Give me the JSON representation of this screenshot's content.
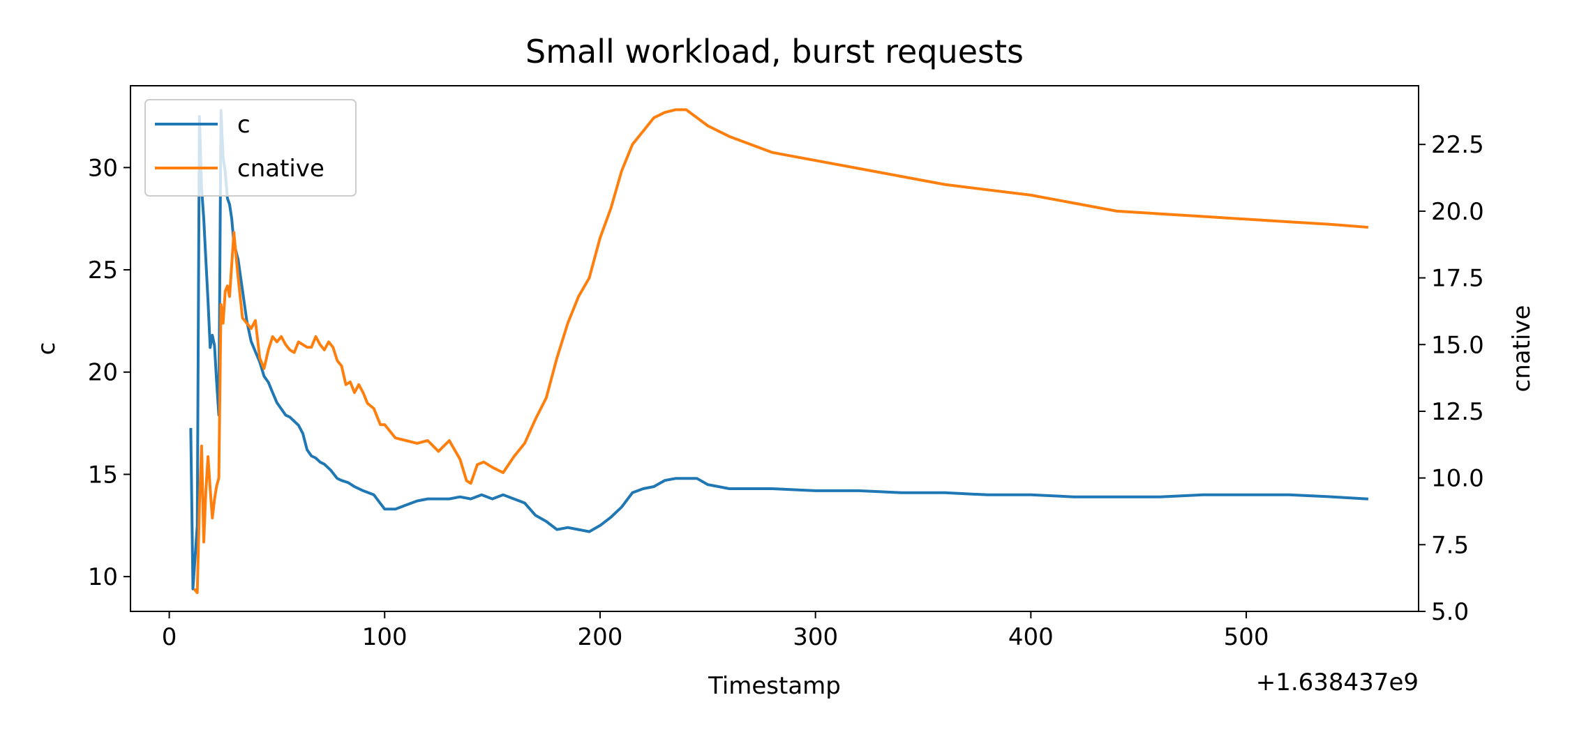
{
  "chart_data": {
    "type": "line",
    "title": "Small workload, burst requests",
    "xlabel": "Timestamp",
    "x_offset_label": "+1.638437e9",
    "ylabel_left": "c",
    "ylabel_right": "cnative",
    "xlim": [
      -18,
      580
    ],
    "ylim_left": [
      8.3,
      34.0
    ],
    "ylim_right": [
      5.0,
      24.7
    ],
    "xticks": [
      0,
      100,
      200,
      300,
      400,
      500
    ],
    "xtick_labels": [
      "0",
      "100",
      "200",
      "300",
      "400",
      "500"
    ],
    "yticks_left": [
      10,
      15,
      20,
      25,
      30
    ],
    "ytick_labels_left": [
      "10",
      "15",
      "20",
      "25",
      "30"
    ],
    "yticks_right": [
      5.0,
      7.5,
      10.0,
      12.5,
      15.0,
      17.5,
      20.0,
      22.5
    ],
    "ytick_labels_right": [
      "5.0",
      "7.5",
      "10.0",
      "12.5",
      "15.0",
      "17.5",
      "20.0",
      "22.5"
    ],
    "grid": false,
    "legend_position": "top-left",
    "series": [
      {
        "name": "c",
        "axis": "left",
        "color": "#1f77b4",
        "x": [
          10,
          11,
          13,
          14,
          15,
          16,
          17,
          18,
          19,
          20,
          21,
          22,
          23,
          24,
          25,
          26,
          27,
          28,
          29,
          30,
          32,
          34,
          36,
          38,
          40,
          42,
          44,
          46,
          48,
          50,
          52,
          54,
          56,
          58,
          60,
          62,
          64,
          66,
          68,
          70,
          72,
          75,
          78,
          80,
          83,
          86,
          90,
          95,
          100,
          105,
          110,
          115,
          120,
          125,
          130,
          135,
          140,
          145,
          150,
          155,
          160,
          165,
          170,
          175,
          180,
          185,
          190,
          195,
          200,
          205,
          210,
          215,
          220,
          225,
          230,
          235,
          240,
          245,
          250,
          255,
          260,
          270,
          280,
          300,
          320,
          340,
          360,
          380,
          400,
          420,
          440,
          460,
          480,
          500,
          520,
          540,
          556
        ],
        "y": [
          17.2,
          9.4,
          12.5,
          32.5,
          29.0,
          27.5,
          25.5,
          23.5,
          21.2,
          21.8,
          21.3,
          19.5,
          17.9,
          32.8,
          30.5,
          29.8,
          28.5,
          28.2,
          27.5,
          26.3,
          25.5,
          24.0,
          22.5,
          21.5,
          21.0,
          20.5,
          19.8,
          19.5,
          19.0,
          18.5,
          18.2,
          17.9,
          17.8,
          17.6,
          17.4,
          17.0,
          16.2,
          15.9,
          15.8,
          15.6,
          15.5,
          15.2,
          14.8,
          14.7,
          14.6,
          14.4,
          14.2,
          14.0,
          13.3,
          13.3,
          13.5,
          13.7,
          13.8,
          13.8,
          13.8,
          13.9,
          13.8,
          14.0,
          13.8,
          14.0,
          13.8,
          13.6,
          13.0,
          12.7,
          12.3,
          12.4,
          12.3,
          12.2,
          12.5,
          12.9,
          13.4,
          14.1,
          14.3,
          14.4,
          14.7,
          14.8,
          14.8,
          14.8,
          14.5,
          14.4,
          14.3,
          14.3,
          14.3,
          14.2,
          14.2,
          14.1,
          14.1,
          14.0,
          14.0,
          13.9,
          13.9,
          13.9,
          14.0,
          14.0,
          14.0,
          13.9,
          13.8
        ]
      },
      {
        "name": "cnative",
        "axis": "right",
        "color": "#ff7f0e",
        "x": [
          12,
          13,
          14,
          15,
          16,
          17,
          18,
          19,
          20,
          21,
          22,
          23,
          24,
          25,
          26,
          27,
          28,
          29,
          30,
          32,
          34,
          36,
          38,
          40,
          42,
          44,
          46,
          48,
          50,
          52,
          54,
          56,
          58,
          60,
          62,
          64,
          66,
          68,
          70,
          72,
          74,
          76,
          78,
          80,
          82,
          84,
          86,
          88,
          90,
          92,
          95,
          98,
          100,
          105,
          110,
          115,
          120,
          125,
          130,
          135,
          138,
          140,
          143,
          146,
          150,
          155,
          160,
          165,
          170,
          175,
          180,
          185,
          190,
          195,
          200,
          205,
          210,
          215,
          220,
          225,
          230,
          235,
          240,
          245,
          250,
          255,
          260,
          270,
          280,
          300,
          320,
          340,
          360,
          380,
          400,
          420,
          440,
          460,
          480,
          500,
          520,
          540,
          556
        ],
        "y": [
          5.8,
          5.7,
          9.0,
          11.2,
          7.6,
          9.5,
          10.8,
          9.6,
          8.5,
          9.2,
          9.7,
          10.0,
          16.5,
          15.8,
          17.0,
          17.2,
          16.8,
          18.0,
          19.2,
          17.5,
          16.0,
          15.8,
          15.6,
          15.9,
          14.5,
          14.1,
          14.8,
          15.3,
          15.1,
          15.3,
          15.0,
          14.8,
          14.7,
          15.1,
          15.0,
          14.9,
          14.9,
          15.3,
          15.0,
          14.8,
          15.1,
          14.9,
          14.4,
          14.2,
          13.5,
          13.6,
          13.2,
          13.5,
          13.2,
          12.8,
          12.6,
          12.0,
          12.0,
          11.5,
          11.4,
          11.3,
          11.4,
          11.0,
          11.4,
          10.7,
          9.9,
          9.8,
          10.5,
          10.6,
          10.4,
          10.2,
          10.8,
          11.3,
          12.2,
          13.0,
          14.5,
          15.8,
          16.8,
          17.5,
          19.0,
          20.1,
          21.5,
          22.5,
          23.0,
          23.5,
          23.7,
          23.8,
          23.8,
          23.5,
          23.2,
          23.0,
          22.8,
          22.5,
          22.2,
          21.9,
          21.6,
          21.3,
          21.0,
          20.8,
          20.6,
          20.3,
          20.0,
          19.9,
          19.8,
          19.7,
          19.6,
          19.5,
          19.4
        ]
      }
    ]
  }
}
